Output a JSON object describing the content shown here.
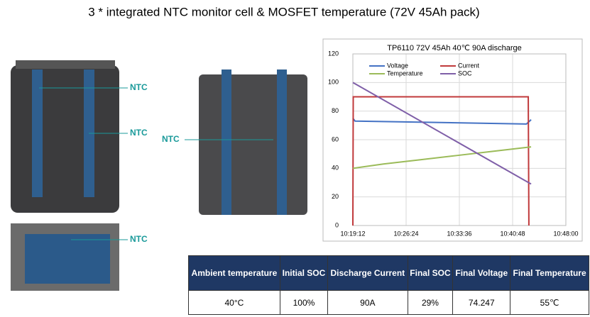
{
  "title": "3 * integrated NTC monitor cell & MOSFET temperature (72V 45Ah pack)",
  "ntc_labels": [
    "NTC",
    "NTC",
    "NTC",
    "NTC"
  ],
  "chart_data": {
    "type": "line",
    "title": "TP6110 72V 45Ah 40℃ 90A discharge",
    "xlim": [
      37152,
      38880
    ],
    "xticks": [
      {
        "value": 37152,
        "label": "10:19:12"
      },
      {
        "value": 37584,
        "label": "10:26:24"
      },
      {
        "value": 38016,
        "label": "10:33:36"
      },
      {
        "value": 38448,
        "label": "10:40:48"
      },
      {
        "value": 38880,
        "label": "10:48:00"
      }
    ],
    "ylim": [
      0,
      120
    ],
    "yticks": [
      0,
      20,
      40,
      60,
      80,
      100,
      120
    ],
    "grid": true,
    "series": [
      {
        "name": "Voltage",
        "color": "#4472c4",
        "x": [
          37152,
          37170,
          38560,
          38598
        ],
        "values": [
          75,
          73,
          71,
          74
        ]
      },
      {
        "name": "Current",
        "color": "#c0393b",
        "x": [
          37152,
          37155,
          38575,
          38580
        ],
        "values": [
          0,
          90,
          90,
          0
        ]
      },
      {
        "name": "Temperature",
        "color": "#9bbb59",
        "x": [
          37152,
          37400,
          37700,
          38000,
          38300,
          38598
        ],
        "values": [
          40,
          43,
          46,
          49,
          52,
          55
        ]
      },
      {
        "name": "SOC",
        "color": "#7f5fa8",
        "x": [
          37152,
          38598
        ],
        "values": [
          100,
          29
        ]
      }
    ]
  },
  "table": {
    "header": [
      "Ambient temperature",
      "Initial SOC",
      "Discharge Current",
      "Final SOC",
      "Final Voltage",
      "Final Temperature"
    ],
    "rows": [
      [
        "40°C",
        "100%",
        "90A",
        "29%",
        "74.247",
        "55℃"
      ]
    ]
  }
}
